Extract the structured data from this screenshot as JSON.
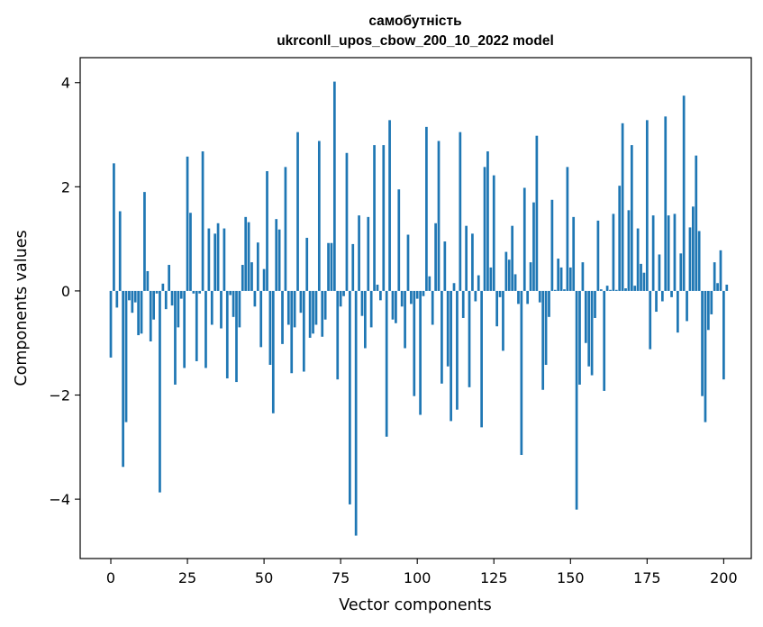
{
  "chart_data": {
    "type": "bar",
    "title": "самобутність",
    "subtitle": "ukrconll_upos_cbow_200_10_2022 model",
    "xlabel": "Vector components",
    "ylabel": "Components values",
    "xlim": [
      -10,
      209
    ],
    "ylim": [
      -5.14,
      4.48
    ],
    "xticks": [
      0,
      25,
      50,
      75,
      100,
      125,
      150,
      175,
      200
    ],
    "xtick_labels": [
      "0",
      "25",
      "50",
      "75",
      "100",
      "125",
      "150",
      "175",
      "200"
    ],
    "yticks": [
      -4,
      -2,
      0,
      2,
      4
    ],
    "ytick_labels": [
      "−4",
      "−2",
      "0",
      "2",
      "4"
    ],
    "grid": false,
    "bar_color": "#1f77b4",
    "values": [
      -1.28,
      2.45,
      -0.32,
      1.53,
      -3.38,
      -2.52,
      -0.18,
      -0.42,
      -0.22,
      -0.85,
      -0.82,
      1.9,
      0.38,
      -0.97,
      -0.55,
      -0.05,
      -3.87,
      0.14,
      -0.35,
      0.5,
      -0.28,
      -1.8,
      -0.7,
      -0.15,
      -1.48,
      2.58,
      1.5,
      -0.05,
      -1.35,
      -0.05,
      2.68,
      -1.48,
      1.2,
      -0.65,
      1.1,
      1.3,
      -0.72,
      1.2,
      -1.68,
      -0.08,
      -0.5,
      -1.75,
      -0.7,
      0.5,
      1.42,
      1.32,
      0.55,
      -0.3,
      0.93,
      -1.08,
      0.42,
      2.3,
      -1.42,
      -2.35,
      1.38,
      1.18,
      -1.02,
      2.38,
      -0.65,
      -1.58,
      -0.7,
      3.05,
      -0.42,
      -1.55,
      1.02,
      -0.9,
      -0.82,
      -0.65,
      2.88,
      -0.88,
      -0.55,
      0.92,
      0.92,
      4.02,
      -1.7,
      -0.3,
      -0.1,
      2.65,
      -4.1,
      0.9,
      -4.7,
      1.45,
      -0.48,
      -1.1,
      1.42,
      -0.7,
      2.8,
      0.12,
      -0.18,
      2.8,
      -2.8,
      3.28,
      -0.55,
      -0.62,
      1.95,
      -0.3,
      -1.1,
      1.08,
      -0.25,
      -2.02,
      -0.15,
      -2.38,
      -0.1,
      3.15,
      0.28,
      -0.65,
      1.3,
      2.88,
      -1.78,
      0.95,
      -1.45,
      -2.5,
      0.15,
      -2.28,
      3.05,
      -0.52,
      1.25,
      -1.85,
      1.1,
      -0.2,
      0.3,
      -2.62,
      2.38,
      2.68,
      0.45,
      2.22,
      -0.68,
      -0.12,
      -1.15,
      0.75,
      0.6,
      1.25,
      0.32,
      -0.25,
      -3.15,
      1.98,
      -0.25,
      0.55,
      1.7,
      2.98,
      -0.22,
      -1.9,
      -1.42,
      -0.5,
      1.75,
      0.02,
      0.62,
      0.45,
      0.03,
      2.38,
      0.45,
      1.42,
      -4.2,
      -1.8,
      0.55,
      -1.0,
      -1.45,
      -1.62,
      -0.52,
      1.35,
      0.03,
      -1.92,
      0.1,
      0.02,
      1.48,
      0.02,
      2.02,
      3.22,
      0.05,
      1.55,
      2.8,
      0.1,
      1.2,
      0.52,
      0.35,
      3.28,
      -1.12,
      1.45,
      -0.4,
      0.7,
      -0.2,
      3.35,
      1.45,
      -0.12,
      1.48,
      -0.8,
      0.72,
      3.75,
      -0.58,
      1.22,
      1.62,
      2.6,
      1.15,
      -2.02,
      -2.52,
      -0.75,
      -0.45,
      0.55,
      0.15,
      0.78,
      -1.7,
      0.12
    ]
  }
}
